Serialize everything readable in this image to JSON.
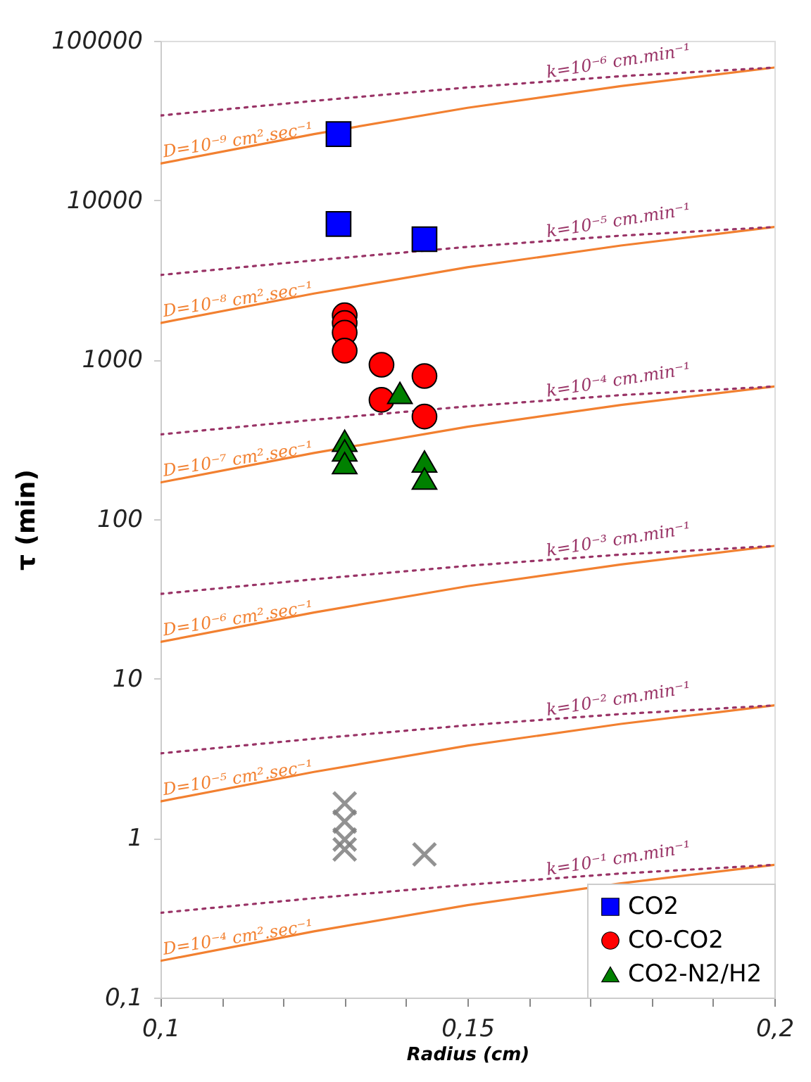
{
  "chart_data": {
    "type": "scatter",
    "xlabel": "Radius (cm)",
    "ylabel": "τ (min)",
    "log": "y",
    "xlim": [
      0.1,
      0.2
    ],
    "ylim": [
      0.1,
      100000
    ],
    "xticks": [
      {
        "value": 0.1,
        "label": "0,1"
      },
      {
        "value": 0.11,
        "label": null
      },
      {
        "value": 0.12,
        "label": null
      },
      {
        "value": 0.13,
        "label": null
      },
      {
        "value": 0.14,
        "label": null
      },
      {
        "value": 0.15,
        "label": "0,15"
      },
      {
        "value": 0.16,
        "label": null
      },
      {
        "value": 0.17,
        "label": null
      },
      {
        "value": 0.18,
        "label": null
      },
      {
        "value": 0.19,
        "label": null
      },
      {
        "value": 0.2,
        "label": "0,2"
      }
    ],
    "yticks": [
      {
        "value": 0.1,
        "label": "0,1"
      },
      1,
      10,
      100,
      1000,
      10000,
      100000
    ],
    "grid": false,
    "legend": "bottom right",
    "series": [
      {
        "name": "CO2",
        "color": "#0000ff",
        "marker": "square",
        "x": [
          0.129,
          0.129,
          0.143
        ],
        "values": [
          26000,
          7100,
          5700
        ]
      },
      {
        "name": "CO-CO2",
        "color": "#ff0000",
        "marker": "circle",
        "x": [
          0.13,
          0.13,
          0.13,
          0.13,
          0.136,
          0.136,
          0.143,
          0.143
        ],
        "values": [
          1900,
          1700,
          1480,
          1140,
          930,
          560,
          790,
          440
        ]
      },
      {
        "name": "CO2-N2/H2",
        "color": "#008000",
        "marker": "triangle",
        "x": [
          0.13,
          0.13,
          0.13,
          0.139,
          0.143,
          0.143
        ],
        "values": [
          310,
          270,
          225,
          620,
          230,
          180
        ]
      },
      {
        "color": "#808080",
        "marker": "cross",
        "x": [
          0.13,
          0.13,
          0.13,
          0.13,
          0.143
        ],
        "values": [
          1.65,
          1.27,
          0.98,
          0.85,
          0.79
        ]
      },
      {
        "type": "line",
        "name": "D=10⁻⁹ cm².sec⁻¹",
        "color": "#f28030",
        "line_style": "solid",
        "x": [
          0.1,
          0.125,
          0.15,
          0.175,
          0.2
        ],
        "values": [
          17000,
          26000,
          38000,
          52000,
          68000
        ]
      },
      {
        "type": "line",
        "name": "D=10⁻⁸ cm².sec⁻¹",
        "color": "#f28030",
        "line_style": "solid",
        "x": [
          0.1,
          0.125,
          0.15,
          0.175,
          0.2
        ],
        "values": [
          1700,
          2600,
          3800,
          5200,
          6800
        ]
      },
      {
        "type": "line",
        "name": "D=10⁻⁷ cm².sec⁻¹",
        "color": "#f28030",
        "line_style": "solid",
        "x": [
          0.1,
          0.125,
          0.15,
          0.175,
          0.2
        ],
        "values": [
          170,
          260,
          380,
          520,
          680
        ]
      },
      {
        "type": "line",
        "name": "D=10⁻⁶ cm².sec⁻¹",
        "color": "#f28030",
        "line_style": "solid",
        "x": [
          0.1,
          0.125,
          0.15,
          0.175,
          0.2
        ],
        "values": [
          17,
          26,
          38,
          52,
          68
        ]
      },
      {
        "type": "line",
        "name": "D=10⁻⁵ cm².sec⁻¹",
        "color": "#f28030",
        "line_style": "solid",
        "x": [
          0.1,
          0.125,
          0.15,
          0.175,
          0.2
        ],
        "values": [
          1.7,
          2.6,
          3.8,
          5.2,
          6.8
        ]
      },
      {
        "type": "line",
        "name": "D=10⁻⁴ cm².sec⁻¹",
        "color": "#f28030",
        "line_style": "solid",
        "x": [
          0.1,
          0.125,
          0.15,
          0.175,
          0.2
        ],
        "values": [
          0.17,
          0.26,
          0.38,
          0.52,
          0.68
        ]
      },
      {
        "type": "line",
        "name": "k=10⁻⁶ cm.min⁻¹",
        "color": "#993366",
        "line_style": "dotted",
        "x": [
          0.1,
          0.125,
          0.15,
          0.175,
          0.2
        ],
        "values": [
          34000,
          42000,
          51000,
          60000,
          68000
        ]
      },
      {
        "type": "line",
        "name": "k=10⁻⁵ cm.min⁻¹",
        "color": "#993366",
        "line_style": "dotted",
        "x": [
          0.1,
          0.125,
          0.15,
          0.175,
          0.2
        ],
        "values": [
          3400,
          4200,
          5100,
          6000,
          6800
        ]
      },
      {
        "type": "line",
        "name": "k=10⁻⁴ cm.min⁻¹",
        "color": "#993366",
        "line_style": "dotted",
        "x": [
          0.1,
          0.125,
          0.15,
          0.175,
          0.2
        ],
        "values": [
          340,
          420,
          510,
          600,
          680
        ]
      },
      {
        "type": "line",
        "name": "k=10⁻³ cm.min⁻¹",
        "color": "#993366",
        "line_style": "dotted",
        "x": [
          0.1,
          0.125,
          0.15,
          0.175,
          0.2
        ],
        "values": [
          34,
          42,
          51,
          60,
          68
        ]
      },
      {
        "type": "line",
        "name": "k=10⁻² cm.min⁻¹",
        "color": "#993366",
        "line_style": "dotted",
        "x": [
          0.1,
          0.125,
          0.15,
          0.175,
          0.2
        ],
        "values": [
          3.4,
          4.2,
          5.1,
          6.0,
          6.8
        ]
      },
      {
        "type": "line",
        "name": "k=10⁻¹ cm.min⁻¹",
        "color": "#993366",
        "line_style": "dotted",
        "x": [
          0.1,
          0.125,
          0.15,
          0.175,
          0.2
        ],
        "values": [
          0.34,
          0.42,
          0.51,
          0.6,
          0.68
        ]
      }
    ]
  }
}
